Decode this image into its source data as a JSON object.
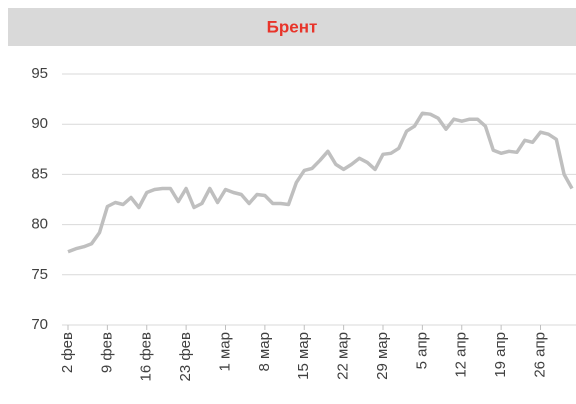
{
  "chart_data": {
    "type": "line",
    "title": "Брент",
    "categories": [
      "2 фев",
      null,
      null,
      null,
      null,
      "9 фев",
      null,
      null,
      null,
      null,
      "16 фев",
      null,
      null,
      null,
      null,
      "23 фев",
      null,
      null,
      null,
      null,
      "1 мар",
      null,
      null,
      null,
      null,
      "8 мар",
      null,
      null,
      null,
      null,
      "15 мар",
      null,
      null,
      null,
      null,
      "22 мар",
      null,
      null,
      null,
      null,
      "29 мар",
      null,
      null,
      null,
      null,
      "5 апр",
      null,
      null,
      null,
      null,
      "12 апр",
      null,
      null,
      null,
      null,
      "19 апр",
      null,
      null,
      null,
      null,
      "26 апр",
      null,
      null,
      null,
      null
    ],
    "series": [
      {
        "name": "Брент",
        "color": "#bfbfbf",
        "values": [
          77.3,
          77.6,
          77.8,
          78.1,
          79.2,
          81.8,
          82.2,
          82.0,
          82.7,
          81.7,
          83.2,
          83.5,
          83.6,
          83.6,
          82.3,
          83.6,
          81.7,
          82.1,
          83.6,
          82.2,
          83.5,
          83.2,
          83.0,
          82.1,
          83.0,
          82.9,
          82.1,
          82.1,
          82.0,
          84.2,
          85.4,
          85.6,
          86.4,
          87.3,
          86.0,
          85.5,
          86.0,
          86.6,
          86.2,
          85.5,
          87.0,
          87.1,
          87.6,
          89.3,
          89.8,
          91.1,
          91.0,
          90.6,
          89.5,
          90.5,
          90.3,
          90.5,
          90.5,
          89.8,
          87.4,
          87.1,
          87.3,
          87.2,
          88.4,
          88.2,
          89.2,
          89.0,
          88.5,
          85.0,
          83.6
        ]
      }
    ],
    "ylim": [
      70,
      95
    ],
    "yticks": [
      70,
      75,
      80,
      85,
      90,
      95
    ],
    "grid": true
  }
}
